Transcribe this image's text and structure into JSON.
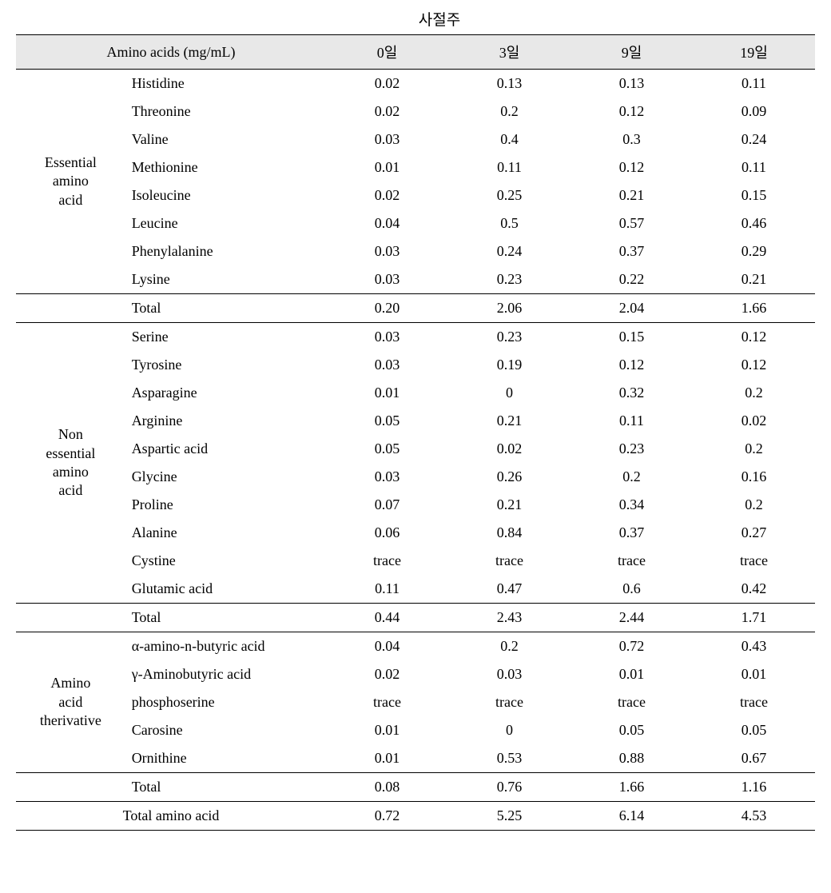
{
  "title": "사절주",
  "headers": {
    "amino": "Amino acids (mg/mL)",
    "day0": "0일",
    "day3": "3일",
    "day9": "9일",
    "day19": "19일"
  },
  "groups": {
    "essential": "Essential\namino\nacid",
    "nonessential": "Non\nessential\namino\nacid",
    "derivative": "Amino\nacid\ntherivative"
  },
  "essential": {
    "histidine": {
      "name": "Histidine",
      "d0": "0.02",
      "d3": "0.13",
      "d9": "0.13",
      "d19": "0.11"
    },
    "threonine": {
      "name": "Threonine",
      "d0": "0.02",
      "d3": "0.2",
      "d9": "0.12",
      "d19": "0.09"
    },
    "valine": {
      "name": "Valine",
      "d0": "0.03",
      "d3": "0.4",
      "d9": "0.3",
      "d19": "0.24"
    },
    "methionine": {
      "name": "Methionine",
      "d0": "0.01",
      "d3": "0.11",
      "d9": "0.12",
      "d19": "0.11"
    },
    "isoleucine": {
      "name": "Isoleucine",
      "d0": "0.02",
      "d3": "0.25",
      "d9": "0.21",
      "d19": "0.15"
    },
    "leucine": {
      "name": "Leucine",
      "d0": "0.04",
      "d3": "0.5",
      "d9": "0.57",
      "d19": "0.46"
    },
    "phenylalanine": {
      "name": "Phenylalanine",
      "d0": "0.03",
      "d3": "0.24",
      "d9": "0.37",
      "d19": "0.29"
    },
    "lysine": {
      "name": "Lysine",
      "d0": "0.03",
      "d3": "0.23",
      "d9": "0.22",
      "d19": "0.21"
    },
    "total": {
      "name": "Total",
      "d0": "0.20",
      "d3": "2.06",
      "d9": "2.04",
      "d19": "1.66"
    }
  },
  "nonessential": {
    "serine": {
      "name": "Serine",
      "d0": "0.03",
      "d3": "0.23",
      "d9": "0.15",
      "d19": "0.12"
    },
    "tyrosine": {
      "name": "Tyrosine",
      "d0": "0.03",
      "d3": "0.19",
      "d9": "0.12",
      "d19": "0.12"
    },
    "asparagine": {
      "name": "Asparagine",
      "d0": "0.01",
      "d3": "0",
      "d9": "0.32",
      "d19": "0.2"
    },
    "arginine": {
      "name": "Arginine",
      "d0": "0.05",
      "d3": "0.21",
      "d9": "0.11",
      "d19": "0.02"
    },
    "aspartic": {
      "name": "Aspartic acid",
      "d0": "0.05",
      "d3": "0.02",
      "d9": "0.23",
      "d19": "0.2"
    },
    "glycine": {
      "name": "Glycine",
      "d0": "0.03",
      "d3": "0.26",
      "d9": "0.2",
      "d19": "0.16"
    },
    "proline": {
      "name": "Proline",
      "d0": "0.07",
      "d3": "0.21",
      "d9": "0.34",
      "d19": "0.2"
    },
    "alanine": {
      "name": "Alanine",
      "d0": "0.06",
      "d3": "0.84",
      "d9": "0.37",
      "d19": "0.27"
    },
    "cystine": {
      "name": "Cystine",
      "d0": "trace",
      "d3": "trace",
      "d9": "trace",
      "d19": "trace"
    },
    "glutamic": {
      "name": "Glutamic acid",
      "d0": "0.11",
      "d3": "0.47",
      "d9": "0.6",
      "d19": "0.42"
    },
    "total": {
      "name": "Total",
      "d0": "0.44",
      "d3": "2.43",
      "d9": "2.44",
      "d19": "1.71"
    }
  },
  "derivative": {
    "alpha": {
      "name": "α-amino-n-butyric acid",
      "d0": "0.04",
      "d3": "0.2",
      "d9": "0.72",
      "d19": "0.43"
    },
    "gamma": {
      "name": "γ-Aminobutyric acid",
      "d0": "0.02",
      "d3": "0.03",
      "d9": "0.01",
      "d19": "0.01"
    },
    "phospho": {
      "name": "phosphoserine",
      "d0": "trace",
      "d3": "trace",
      "d9": "trace",
      "d19": "trace"
    },
    "carosine": {
      "name": "Carosine",
      "d0": "0.01",
      "d3": "0",
      "d9": "0.05",
      "d19": "0.05"
    },
    "ornithine": {
      "name": "Ornithine",
      "d0": "0.01",
      "d3": "0.53",
      "d9": "0.88",
      "d19": "0.67"
    },
    "total": {
      "name": "Total",
      "d0": "0.08",
      "d3": "0.76",
      "d9": "1.66",
      "d19": "1.16"
    }
  },
  "grandtotal": {
    "name": "Total amino acid",
    "d0": "0.72",
    "d3": "5.25",
    "d9": "6.14",
    "d19": "4.53"
  }
}
